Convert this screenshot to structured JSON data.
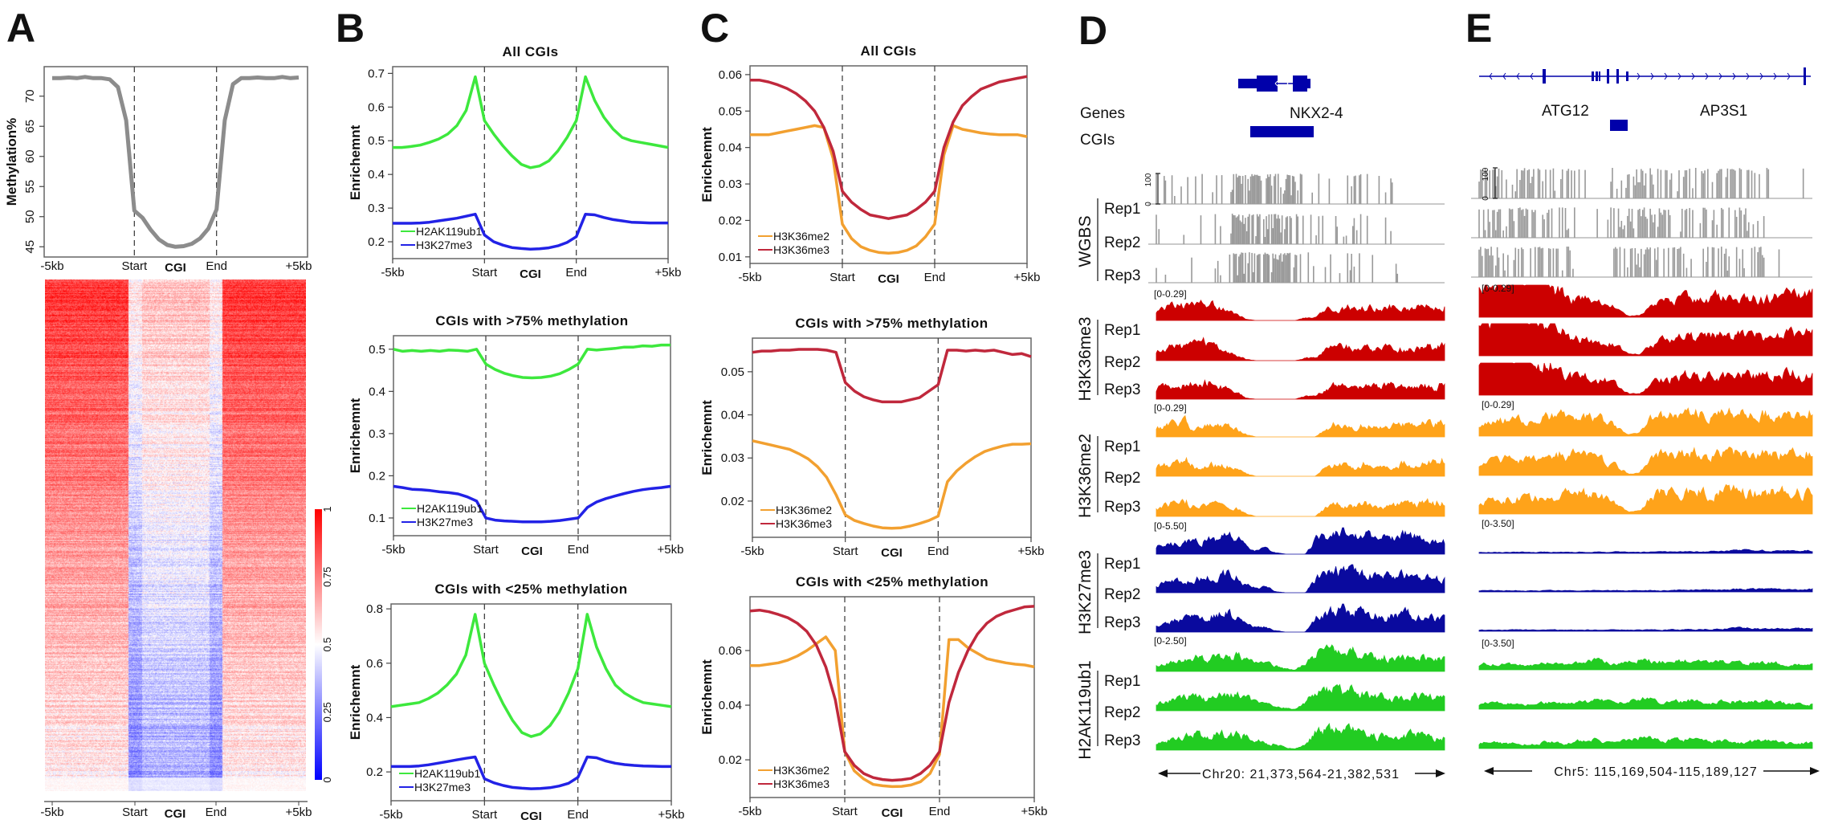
{
  "panels": {
    "A": "A",
    "B": "B",
    "C": "C",
    "D": "D",
    "E": "E"
  },
  "chart_data": [
    {
      "panel": "A",
      "type": "line",
      "title": "",
      "ylabel": "Methylation%",
      "xticks": [
        "-5kb",
        "Start",
        "End",
        "+5kb"
      ],
      "xlabel": "CGI",
      "ylim": [
        43.3,
        74.9
      ],
      "yticks": [
        "45",
        "50",
        "55",
        "60",
        "65",
        "70"
      ],
      "grid": false,
      "series": [
        {
          "color": "#8c8c8c",
          "values": [
            73,
            73,
            73.1,
            73,
            73.2,
            73,
            73,
            72.8,
            71.5,
            66,
            51,
            49.8,
            47.8,
            46.2,
            45.3,
            45,
            45.1,
            45.5,
            46.4,
            48,
            51.2,
            66,
            72,
            73,
            73,
            73.1,
            73,
            73,
            73.2,
            73,
            73.1
          ]
        }
      ]
    },
    {
      "panel": "A",
      "type": "heatmap",
      "xticks": [
        "-5kb",
        "Start",
        "End",
        "+5kb"
      ],
      "xlabel": "CGI",
      "colorbar_ticks": [
        "0",
        "0.25",
        "0.5",
        "0.75",
        "1"
      ],
      "value_range": [
        0,
        1
      ],
      "colors": {
        "low": "#0000ff",
        "mid": "#ffffff",
        "high": "#ff0000"
      }
    },
    {
      "panel": "B",
      "type": "line",
      "title": "All CGIs",
      "ylabel": "Enrichemnt",
      "xticks": [
        "-5kb",
        "Start",
        "End",
        "+5kb"
      ],
      "xlabel": "CGI",
      "ylim": [
        0.15,
        0.72
      ],
      "yticks": [
        "0.2",
        "0.3",
        "0.4",
        "0.5",
        "0.6",
        "0.7"
      ],
      "legend": "bottom-left",
      "series": [
        {
          "name": "H2AK119ub1",
          "color": "#3de83d",
          "values": [
            0.48,
            0.48,
            0.483,
            0.487,
            0.495,
            0.505,
            0.52,
            0.545,
            0.59,
            0.69,
            0.56,
            0.52,
            0.485,
            0.455,
            0.43,
            0.42,
            0.425,
            0.44,
            0.47,
            0.51,
            0.56,
            0.69,
            0.62,
            0.57,
            0.535,
            0.51,
            0.5,
            0.495,
            0.49,
            0.485,
            0.48
          ]
        },
        {
          "name": "H3K27me3",
          "color": "#2222e6",
          "values": [
            0.255,
            0.255,
            0.255,
            0.256,
            0.258,
            0.262,
            0.266,
            0.27,
            0.276,
            0.282,
            0.22,
            0.2,
            0.19,
            0.183,
            0.18,
            0.178,
            0.179,
            0.182,
            0.188,
            0.198,
            0.215,
            0.282,
            0.28,
            0.272,
            0.266,
            0.262,
            0.258,
            0.257,
            0.256,
            0.256,
            0.256
          ]
        }
      ]
    },
    {
      "panel": "B",
      "type": "line",
      "title": "CGIs with >75% methylation",
      "ylabel": "Enrichemnt",
      "xticks": [
        "-5kb",
        "Start",
        "End",
        "+5kb"
      ],
      "xlabel": "CGI",
      "ylim": [
        0.058,
        0.532
      ],
      "yticks": [
        "0.1",
        "0.2",
        "0.3",
        "0.4",
        "0.5"
      ],
      "legend": "bottom-left",
      "series": [
        {
          "name": "H2AK119ub1",
          "color": "#3de83d",
          "values": [
            0.5,
            0.495,
            0.497,
            0.495,
            0.497,
            0.495,
            0.498,
            0.497,
            0.495,
            0.5,
            0.465,
            0.452,
            0.443,
            0.437,
            0.433,
            0.432,
            0.433,
            0.436,
            0.442,
            0.452,
            0.465,
            0.5,
            0.498,
            0.5,
            0.502,
            0.505,
            0.505,
            0.508,
            0.507,
            0.51,
            0.51
          ]
        },
        {
          "name": "H3K27me3",
          "color": "#2222e6",
          "values": [
            0.175,
            0.172,
            0.168,
            0.167,
            0.165,
            0.162,
            0.16,
            0.157,
            0.15,
            0.14,
            0.1,
            0.095,
            0.093,
            0.092,
            0.091,
            0.091,
            0.091,
            0.092,
            0.094,
            0.097,
            0.1,
            0.125,
            0.138,
            0.146,
            0.152,
            0.158,
            0.163,
            0.167,
            0.17,
            0.172,
            0.175
          ]
        }
      ]
    },
    {
      "panel": "B",
      "type": "line",
      "title": "CGIs with <25% methylation",
      "ylabel": "Enrichemnt",
      "xticks": [
        "-5kb",
        "Start",
        "End",
        "+5kb"
      ],
      "xlabel": "CGI",
      "ylim": [
        0.094,
        0.818
      ],
      "yticks": [
        "0.2",
        "0.4",
        "0.6",
        "0.8"
      ],
      "legend": "bottom-left",
      "series": [
        {
          "name": "H2AK119ub1",
          "color": "#3de83d",
          "values": [
            0.44,
            0.445,
            0.45,
            0.455,
            0.47,
            0.49,
            0.52,
            0.56,
            0.63,
            0.78,
            0.6,
            0.52,
            0.45,
            0.39,
            0.345,
            0.33,
            0.34,
            0.37,
            0.42,
            0.49,
            0.58,
            0.78,
            0.66,
            0.58,
            0.52,
            0.49,
            0.47,
            0.455,
            0.45,
            0.445,
            0.44
          ]
        },
        {
          "name": "H3K27me3",
          "color": "#2222e6",
          "values": [
            0.22,
            0.22,
            0.22,
            0.222,
            0.226,
            0.232,
            0.238,
            0.244,
            0.25,
            0.255,
            0.175,
            0.16,
            0.15,
            0.143,
            0.14,
            0.138,
            0.139,
            0.142,
            0.148,
            0.158,
            0.18,
            0.255,
            0.252,
            0.24,
            0.232,
            0.227,
            0.224,
            0.222,
            0.221,
            0.22,
            0.22
          ]
        }
      ]
    },
    {
      "panel": "C",
      "type": "line",
      "title": "All CGIs",
      "ylabel": "Enrichemnt",
      "xticks": [
        "-5kb",
        "Start",
        "End",
        "+5kb"
      ],
      "xlabel": "CGI",
      "ylim": [
        0.0082,
        0.0624
      ],
      "yticks": [
        "0.01",
        "0.02",
        "0.03",
        "0.04",
        "0.05",
        "0.06"
      ],
      "legend": "bottom-left",
      "series": [
        {
          "name": "H3K36me2",
          "color": "#f2a030",
          "values": [
            0.0435,
            0.0435,
            0.0435,
            0.044,
            0.0445,
            0.045,
            0.0455,
            0.046,
            0.0455,
            0.037,
            0.019,
            0.015,
            0.0128,
            0.0118,
            0.0112,
            0.011,
            0.0112,
            0.0118,
            0.013,
            0.0155,
            0.019,
            0.038,
            0.046,
            0.045,
            0.0445,
            0.044,
            0.0437,
            0.0435,
            0.0435,
            0.0435,
            0.043
          ]
        },
        {
          "name": "H3K36me3",
          "color": "#c0283c",
          "values": [
            0.0585,
            0.0585,
            0.058,
            0.0572,
            0.0562,
            0.0548,
            0.0528,
            0.05,
            0.0455,
            0.039,
            0.028,
            0.025,
            0.023,
            0.0215,
            0.021,
            0.0205,
            0.021,
            0.0215,
            0.023,
            0.025,
            0.028,
            0.04,
            0.047,
            0.0515,
            0.054,
            0.056,
            0.057,
            0.058,
            0.0585,
            0.059,
            0.0595
          ]
        }
      ]
    },
    {
      "panel": "C",
      "type": "line",
      "title": "CGIs with >75% methylation",
      "ylabel": "Enrichemnt",
      "xticks": [
        "-5kb",
        "Start",
        "End",
        "+5kb"
      ],
      "xlabel": "CGI",
      "ylim": [
        0.0116,
        0.0578
      ],
      "yticks": [
        "0.02",
        "0.03",
        "0.04",
        "0.05"
      ],
      "legend": "bottom-left",
      "series": [
        {
          "name": "H3K36me2",
          "color": "#f2a030",
          "values": [
            0.034,
            0.0335,
            0.033,
            0.0325,
            0.032,
            0.031,
            0.0298,
            0.028,
            0.0255,
            0.0215,
            0.0168,
            0.0155,
            0.0148,
            0.0142,
            0.0138,
            0.0137,
            0.0138,
            0.0142,
            0.0148,
            0.0155,
            0.0165,
            0.0245,
            0.027,
            0.0288,
            0.0303,
            0.0315,
            0.0322,
            0.0328,
            0.0332,
            0.0332,
            0.0333
          ]
        },
        {
          "name": "H3K36me3",
          "color": "#c0283c",
          "values": [
            0.0545,
            0.0548,
            0.0548,
            0.055,
            0.055,
            0.0552,
            0.0552,
            0.0552,
            0.055,
            0.0545,
            0.0475,
            0.0455,
            0.0442,
            0.0435,
            0.043,
            0.043,
            0.043,
            0.0435,
            0.044,
            0.0455,
            0.047,
            0.055,
            0.055,
            0.0548,
            0.055,
            0.0548,
            0.055,
            0.0545,
            0.054,
            0.0542,
            0.0535
          ]
        }
      ]
    },
    {
      "panel": "C",
      "type": "line",
      "title": "CGIs with <25% methylation",
      "ylabel": "Enrichemnt",
      "xticks": [
        "-5kb",
        "Start",
        "End",
        "+5kb"
      ],
      "xlabel": "CGI",
      "ylim": [
        0.0062,
        0.0797
      ],
      "yticks": [
        "0.02",
        "0.04",
        "0.06"
      ],
      "legend": "bottom-left",
      "series": [
        {
          "name": "H3K36me2",
          "color": "#f2a030",
          "values": [
            0.0545,
            0.0545,
            0.055,
            0.0555,
            0.0565,
            0.058,
            0.06,
            0.0625,
            0.065,
            0.06,
            0.023,
            0.016,
            0.013,
            0.011,
            0.0105,
            0.0102,
            0.0103,
            0.0108,
            0.012,
            0.015,
            0.022,
            0.064,
            0.064,
            0.061,
            0.059,
            0.057,
            0.0562,
            0.0555,
            0.055,
            0.0547,
            0.054
          ]
        },
        {
          "name": "H3K36me3",
          "color": "#c0283c",
          "values": [
            0.0745,
            0.0748,
            0.0742,
            0.0732,
            0.072,
            0.07,
            0.067,
            0.062,
            0.054,
            0.042,
            0.023,
            0.018,
            0.015,
            0.0135,
            0.0128,
            0.0125,
            0.0127,
            0.0132,
            0.015,
            0.018,
            0.023,
            0.041,
            0.052,
            0.06,
            0.066,
            0.07,
            0.0725,
            0.074,
            0.075,
            0.076,
            0.0762
          ]
        }
      ]
    }
  ],
  "panel_D": {
    "gene_track_label": "Genes",
    "cgi_track_label": "CGIs",
    "gene_name": "NKX2-4",
    "locus": "Chr20: 21,373,564-21,382,531",
    "groups": [
      {
        "label": "WGBS",
        "kind": "methylation",
        "scale_max": "100",
        "scale_min": "0",
        "color": "#999999",
        "reps": [
          "Rep1",
          "Rep2",
          "Rep3"
        ],
        "profile": [
          0.2,
          0.15,
          0.1,
          0.2,
          0.15,
          0.1,
          0.15,
          0.1,
          0.9,
          0.95,
          0.95,
          0.95,
          0.95,
          0.95,
          0.7,
          0.2,
          0.1,
          0.25,
          0.2,
          0.3,
          0.3,
          0.15,
          0.1,
          0.2,
          0.15,
          0.1,
          0.1,
          0,
          0,
          0
        ]
      },
      {
        "label": "H3K36me3",
        "kind": "coverage",
        "range": "[0-0.29]",
        "color": "#cc0000",
        "reps": [
          "Rep1",
          "Rep2",
          "Rep3"
        ],
        "profile": [
          0.4,
          0.5,
          0.55,
          0.5,
          0.6,
          0.7,
          0.5,
          0.4,
          0.3,
          0.05,
          0,
          0,
          0,
          0,
          0,
          0.1,
          0.1,
          0.4,
          0.5,
          0.55,
          0.4,
          0.5,
          0.45,
          0.55,
          0.5,
          0.4,
          0.5,
          0.55,
          0.5,
          0.6
        ]
      },
      {
        "label": "H3K36me2",
        "kind": "coverage",
        "range": "[0-0.29]",
        "color": "#ffa31a",
        "reps": [
          "Rep1",
          "Rep2",
          "Rep3"
        ],
        "profile": [
          0.4,
          0.45,
          0.5,
          0.6,
          0.3,
          0.4,
          0.45,
          0.4,
          0.3,
          0.1,
          0,
          0,
          0,
          0,
          0,
          0,
          0,
          0.3,
          0.5,
          0.4,
          0.35,
          0.5,
          0.4,
          0.3,
          0.45,
          0.5,
          0.4,
          0.5,
          0.55,
          0.6
        ]
      },
      {
        "label": "H3K27me3",
        "kind": "coverage",
        "range": "[0-5.50]",
        "color": "#0a0a9e",
        "reps": [
          "Rep1",
          "Rep2",
          "Rep3"
        ],
        "profile": [
          0.3,
          0.35,
          0.4,
          0.45,
          0.5,
          0.55,
          0.6,
          0.7,
          0.6,
          0.3,
          0.15,
          0.2,
          0.05,
          0,
          0,
          0,
          0.5,
          0.7,
          0.8,
          0.85,
          0.75,
          0.7,
          0.65,
          0.55,
          0.6,
          0.7,
          0.6,
          0.55,
          0.5,
          0.45
        ]
      },
      {
        "label": "H2AK119ub1",
        "kind": "coverage",
        "range": "[0-2.50]",
        "color": "#22cc22",
        "reps": [
          "Rep1",
          "Rep2",
          "Rep3"
        ],
        "profile": [
          0.3,
          0.35,
          0.4,
          0.5,
          0.6,
          0.45,
          0.55,
          0.6,
          0.65,
          0.5,
          0.3,
          0.35,
          0.2,
          0.1,
          0.05,
          0.3,
          0.7,
          0.8,
          0.85,
          0.75,
          0.8,
          0.6,
          0.5,
          0.55,
          0.45,
          0.5,
          0.6,
          0.55,
          0.5,
          0.5
        ]
      }
    ]
  },
  "panel_E": {
    "gene_names": [
      "ATG12",
      "AP3S1"
    ],
    "locus": "Chr5: 115,169,504-115,189,127",
    "groups": [
      {
        "kind": "methylation",
        "scale_max": "100",
        "scale_min": "0",
        "color": "#999999",
        "profile": [
          0.8,
          0.9,
          0.8,
          0.7,
          0.8,
          0.7,
          0.6,
          0.7,
          0.6,
          0.1,
          0.05,
          0.05,
          0.6,
          0.8,
          0.8,
          0.8,
          0.7,
          0.6,
          0.7,
          0.6,
          0.7,
          0.7,
          0.6,
          0.6,
          0.5,
          0.3,
          0.1,
          0,
          0,
          0
        ]
      },
      {
        "kind": "coverage",
        "range": "[0-0.29]",
        "color": "#cc0000",
        "profile": [
          1.3,
          1.3,
          1.3,
          1.3,
          1.3,
          1.3,
          1.2,
          0.8,
          0.6,
          0.55,
          0.5,
          0.45,
          0.3,
          0.05,
          0.05,
          0.35,
          0.5,
          0.55,
          0.6,
          0.55,
          0.6,
          0.65,
          0.6,
          0.65,
          0.6,
          0.6,
          0.65,
          0.7,
          0.65,
          0.8
        ]
      },
      {
        "kind": "coverage",
        "range": "[0-0.29]",
        "color": "#ffa31a",
        "profile": [
          0.4,
          0.45,
          0.5,
          0.55,
          0.5,
          0.55,
          0.65,
          0.7,
          0.65,
          0.7,
          0.65,
          0.5,
          0.3,
          0.05,
          0.1,
          0.6,
          0.7,
          0.65,
          0.7,
          0.75,
          0.65,
          0.7,
          0.75,
          0.7,
          0.7,
          0.75,
          0.7,
          0.75,
          0.7,
          0.8
        ]
      },
      {
        "kind": "coverage",
        "range": "[0-3.50]",
        "color": "#0a0a9e",
        "profile": [
          0.05,
          0.05,
          0.04,
          0.05,
          0.05,
          0.04,
          0.05,
          0.05,
          0.04,
          0.05,
          0.05,
          0.04,
          0.05,
          0.05,
          0.04,
          0.05,
          0.05,
          0.06,
          0.06,
          0.07,
          0.07,
          0.08,
          0.1,
          0.12,
          0.1,
          0.1,
          0.09,
          0.08,
          0.09,
          0.1
        ]
      },
      {
        "kind": "coverage",
        "range": "[0-3.50]",
        "color": "#22cc22",
        "profile": [
          0.2,
          0.25,
          0.2,
          0.2,
          0.15,
          0.2,
          0.25,
          0.2,
          0.2,
          0.3,
          0.35,
          0.3,
          0.2,
          0.3,
          0.4,
          0.35,
          0.3,
          0.3,
          0.35,
          0.3,
          0.25,
          0.3,
          0.3,
          0.25,
          0.3,
          0.3,
          0.25,
          0.2,
          0.2,
          0.2
        ]
      }
    ]
  }
}
